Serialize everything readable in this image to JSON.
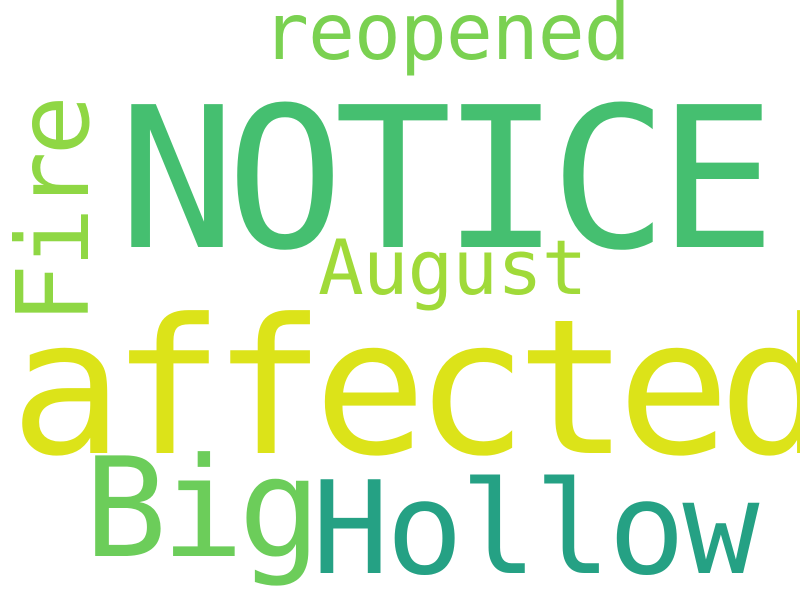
{
  "words": [
    {
      "text": "NOTICE",
      "color": "#45bf70"
    },
    {
      "text": "affected",
      "color": "#dce319"
    },
    {
      "text": "Hollow",
      "color": "#25a184"
    },
    {
      "text": "Big",
      "color": "#6ccd5a"
    },
    {
      "text": "Fire",
      "color": "#8fd744"
    },
    {
      "text": "reopened",
      "color": "#7ad151"
    },
    {
      "text": "August",
      "color": "#a0da39"
    }
  ]
}
